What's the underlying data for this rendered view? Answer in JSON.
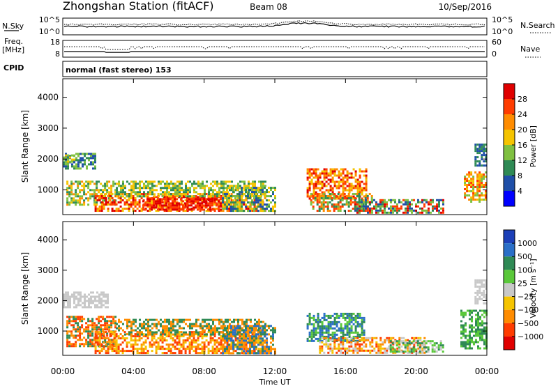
{
  "header": {
    "station": "Zhongshan Station (fitACF)",
    "beam": "Beam 08",
    "date": "10/Sep/2016"
  },
  "panels": {
    "nsky_label": "N.Sky",
    "nsky_ticks": [
      "10^5",
      "10^0"
    ],
    "nsearch_label": "N.Search",
    "nsearch_ticks": [
      "10^5",
      "10^0"
    ],
    "freq_label": "Freq.",
    "freq_unit": "[MHz]",
    "freq_ticks": [
      "18",
      "8"
    ],
    "nave_label": "Nave",
    "nave_ticks": [
      "60",
      "0"
    ],
    "cpid_label": "CPID",
    "cpid_text": "normal (fast stereo) 153"
  },
  "chart_data": [
    {
      "type": "heatmap",
      "name": "power",
      "ylabel": "Slant Range [km]",
      "yticks": [
        "1000",
        "2000",
        "3000",
        "4000"
      ],
      "ylim": [
        200,
        4600
      ],
      "xlim_hours": [
        0,
        24
      ],
      "colorbar_label": "Power [dB]",
      "colorbar_ticks": [
        "4",
        "8",
        "12",
        "16",
        "20",
        "24",
        "28"
      ],
      "colors": [
        "#0000ff",
        "#1f4fa8",
        "#2f8a55",
        "#7fc040",
        "#f5c400",
        "#ff8c00",
        "#ff3c00",
        "#e00000"
      ],
      "regions": [
        {
          "t0": 0.0,
          "t1": 1.8,
          "r0": 1700,
          "r1": 2200,
          "levels": [
            1,
            2,
            3
          ]
        },
        {
          "t0": 0.0,
          "t1": 0.7,
          "r0": 1900,
          "r1": 2150,
          "levels": [
            3,
            4
          ]
        },
        {
          "t0": 0.2,
          "t1": 3.0,
          "r0": 500,
          "r1": 1300,
          "levels": [
            2,
            3,
            4,
            5
          ]
        },
        {
          "t0": 1.8,
          "t1": 11.5,
          "r0": 300,
          "r1": 900,
          "levels": [
            4,
            5,
            6,
            7
          ]
        },
        {
          "t0": 4.5,
          "t1": 9.0,
          "r0": 350,
          "r1": 800,
          "levels": [
            6,
            7
          ]
        },
        {
          "t0": 3.0,
          "t1": 11.5,
          "r0": 800,
          "r1": 1300,
          "levels": [
            2,
            3,
            4
          ]
        },
        {
          "t0": 9.0,
          "t1": 12.0,
          "r0": 300,
          "r1": 1100,
          "levels": [
            1,
            2,
            3,
            4
          ]
        },
        {
          "t0": 13.8,
          "t1": 17.2,
          "r0": 700,
          "r1": 1700,
          "levels": [
            4,
            5,
            6,
            7
          ]
        },
        {
          "t0": 14.0,
          "t1": 17.5,
          "r0": 300,
          "r1": 900,
          "levels": [
            2,
            3,
            5,
            6
          ]
        },
        {
          "t0": 16.5,
          "t1": 21.5,
          "r0": 250,
          "r1": 700,
          "levels": [
            1,
            2,
            3,
            6,
            7
          ]
        },
        {
          "t0": 22.7,
          "t1": 24.0,
          "r0": 600,
          "r1": 1600,
          "levels": [
            3,
            4,
            5,
            6
          ]
        },
        {
          "t0": 23.3,
          "t1": 24.0,
          "r0": 1800,
          "r1": 2500,
          "levels": [
            1,
            2
          ]
        }
      ]
    },
    {
      "type": "heatmap",
      "name": "velocity",
      "ylabel": "Slant Range [km]",
      "yticks": [
        "1000",
        "2000",
        "3000",
        "4000"
      ],
      "ylim": [
        200,
        4600
      ],
      "xlim_hours": [
        0,
        24
      ],
      "colorbar_label": "Velocity [m s⁻¹]",
      "colorbar_ticks": [
        "1000",
        "500",
        "100",
        "25",
        "−25",
        "−100",
        "−500",
        "−1000"
      ],
      "colors": [
        "#1c3fb8",
        "#2a6fc8",
        "#2f8a55",
        "#5ac83a",
        "#c8c8c8",
        "#f5c400",
        "#ff8c00",
        "#ff3c00",
        "#e00000"
      ],
      "regions": [
        {
          "t0": 0.0,
          "t1": 2.5,
          "r0": 1750,
          "r1": 2300,
          "levels": [
            4
          ]
        },
        {
          "t0": 0.2,
          "t1": 3.0,
          "r0": 500,
          "r1": 1500,
          "levels": [
            2,
            6,
            7
          ]
        },
        {
          "t0": 1.8,
          "t1": 11.5,
          "r0": 300,
          "r1": 1000,
          "levels": [
            6,
            7,
            5
          ]
        },
        {
          "t0": 3.0,
          "t1": 11.5,
          "r0": 900,
          "r1": 1400,
          "levels": [
            2,
            6
          ]
        },
        {
          "t0": 9.0,
          "t1": 12.0,
          "r0": 300,
          "r1": 1200,
          "levels": [
            1,
            2,
            6
          ]
        },
        {
          "t0": 13.8,
          "t1": 17.0,
          "r0": 700,
          "r1": 1600,
          "levels": [
            2,
            1,
            3
          ]
        },
        {
          "t0": 14.5,
          "t1": 20.5,
          "r0": 250,
          "r1": 800,
          "levels": [
            5,
            6,
            7,
            4
          ]
        },
        {
          "t0": 18.5,
          "t1": 21.5,
          "r0": 300,
          "r1": 700,
          "levels": [
            2,
            4,
            3
          ]
        },
        {
          "t0": 22.5,
          "t1": 24.0,
          "r0": 400,
          "r1": 1700,
          "levels": [
            2,
            3
          ]
        },
        {
          "t0": 23.3,
          "t1": 24.0,
          "r0": 1900,
          "r1": 2700,
          "levels": [
            4
          ]
        }
      ]
    }
  ],
  "time_axis": {
    "label": "Time UT",
    "ticks": [
      "00:00",
      "04:00",
      "08:00",
      "12:00",
      "16:00",
      "20:00",
      "00:00"
    ]
  }
}
